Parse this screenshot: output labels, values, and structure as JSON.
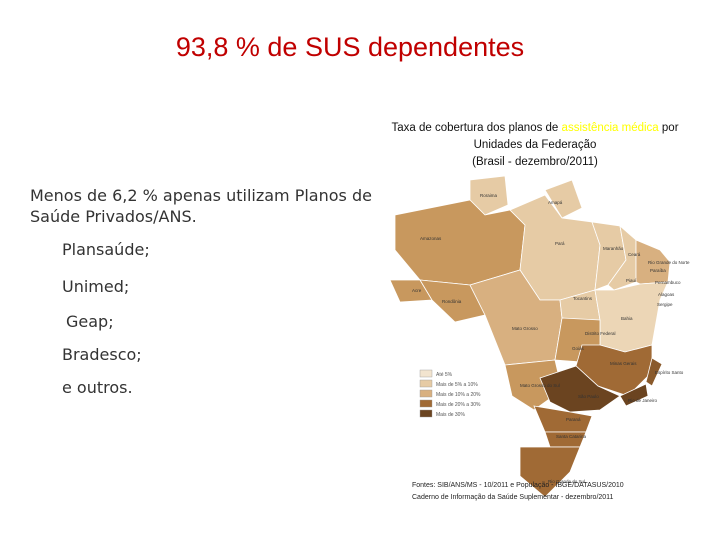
{
  "title": "93,8 % de SUS dependentes",
  "map_title": {
    "line1": [
      "Taxa de cobertura dos planos de",
      "assistência médica",
      "por"
    ],
    "line2": "Unidades da Federação",
    "line3": "(Brasil - dezembro/2011)"
  },
  "body": {
    "intro": "Menos de 6,2 % apenas utilizam Planos de Saúde Privados/ANS.",
    "items": [
      "Plansaúde;",
      "Unimed;",
      "Geap;",
      "Bradesco;",
      "e outros."
    ]
  },
  "map": {
    "states": [
      "Roraima",
      "Amapá",
      "Amazonas",
      "Pará",
      "Maranhão",
      "Ceará",
      "Rio Grande do Norte",
      "Paraíba",
      "Pernambuco",
      "Alagoas",
      "Sergipe",
      "Piauí",
      "Tocantins",
      "Bahia",
      "Acre",
      "Rondônia",
      "Mato Grosso",
      "Distrito Federal",
      "Goiás",
      "Minas Gerais",
      "Mato Grosso do Sul",
      "Espírito Santo",
      "São Paulo",
      "Rio de Janeiro",
      "Paraná",
      "Santa Catarina",
      "Rio Grande do Sul"
    ],
    "legend": [
      "Até 5%",
      "Mais de 5% a 10%",
      "Mais de 10% a 20%",
      "Mais de 20% a 30%",
      "Mais de 30%"
    ]
  },
  "sources": [
    "Fontes: SIB/ANS/MS - 10/2011 e População - IBGE/DATASUS/2010",
    "Caderno de Informação da Saúde Suplementar - dezembro/2011"
  ]
}
